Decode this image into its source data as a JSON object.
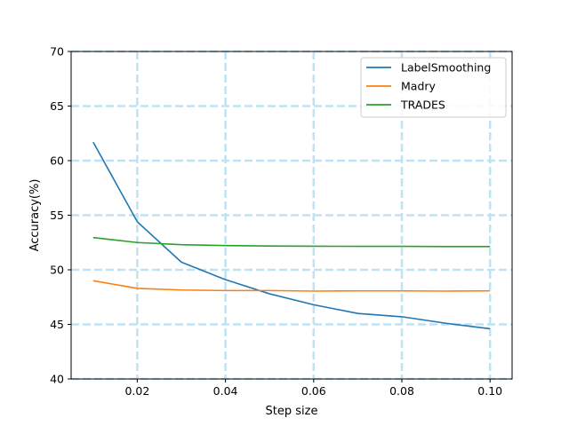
{
  "chart_data": {
    "type": "line",
    "title": "",
    "xlabel": "Step size",
    "ylabel": "Accuracy(%)",
    "xlim": [
      0.005,
      0.105
    ],
    "ylim": [
      40,
      70
    ],
    "xticks": [
      0.02,
      0.04,
      0.06,
      0.08,
      0.1
    ],
    "xtick_labels": [
      "0.02",
      "0.04",
      "0.06",
      "0.08",
      "0.10"
    ],
    "yticks": [
      40,
      45,
      50,
      55,
      60,
      65,
      70
    ],
    "ytick_labels": [
      "40",
      "45",
      "50",
      "55",
      "60",
      "65",
      "70"
    ],
    "grid": true,
    "grid_style": "dashed",
    "grid_color": "#bfe3f3",
    "legend_position": "top-right",
    "x": [
      0.01,
      0.02,
      0.03,
      0.04,
      0.05,
      0.06,
      0.07,
      0.08,
      0.09,
      0.1
    ],
    "series": [
      {
        "name": "LabelSmoothing",
        "color": "#1f77b4",
        "values": [
          61.7,
          54.4,
          50.7,
          49.1,
          47.8,
          46.8,
          46.0,
          45.7,
          45.1,
          44.6
        ]
      },
      {
        "name": "Madry",
        "color": "#ff7f0e",
        "values": [
          49.0,
          48.3,
          48.15,
          48.1,
          48.1,
          48.05,
          48.07,
          48.07,
          48.05,
          48.07
        ]
      },
      {
        "name": "TRADES",
        "color": "#2ca02c",
        "values": [
          52.95,
          52.5,
          52.3,
          52.22,
          52.18,
          52.16,
          52.15,
          52.15,
          52.13,
          52.13
        ]
      }
    ]
  }
}
